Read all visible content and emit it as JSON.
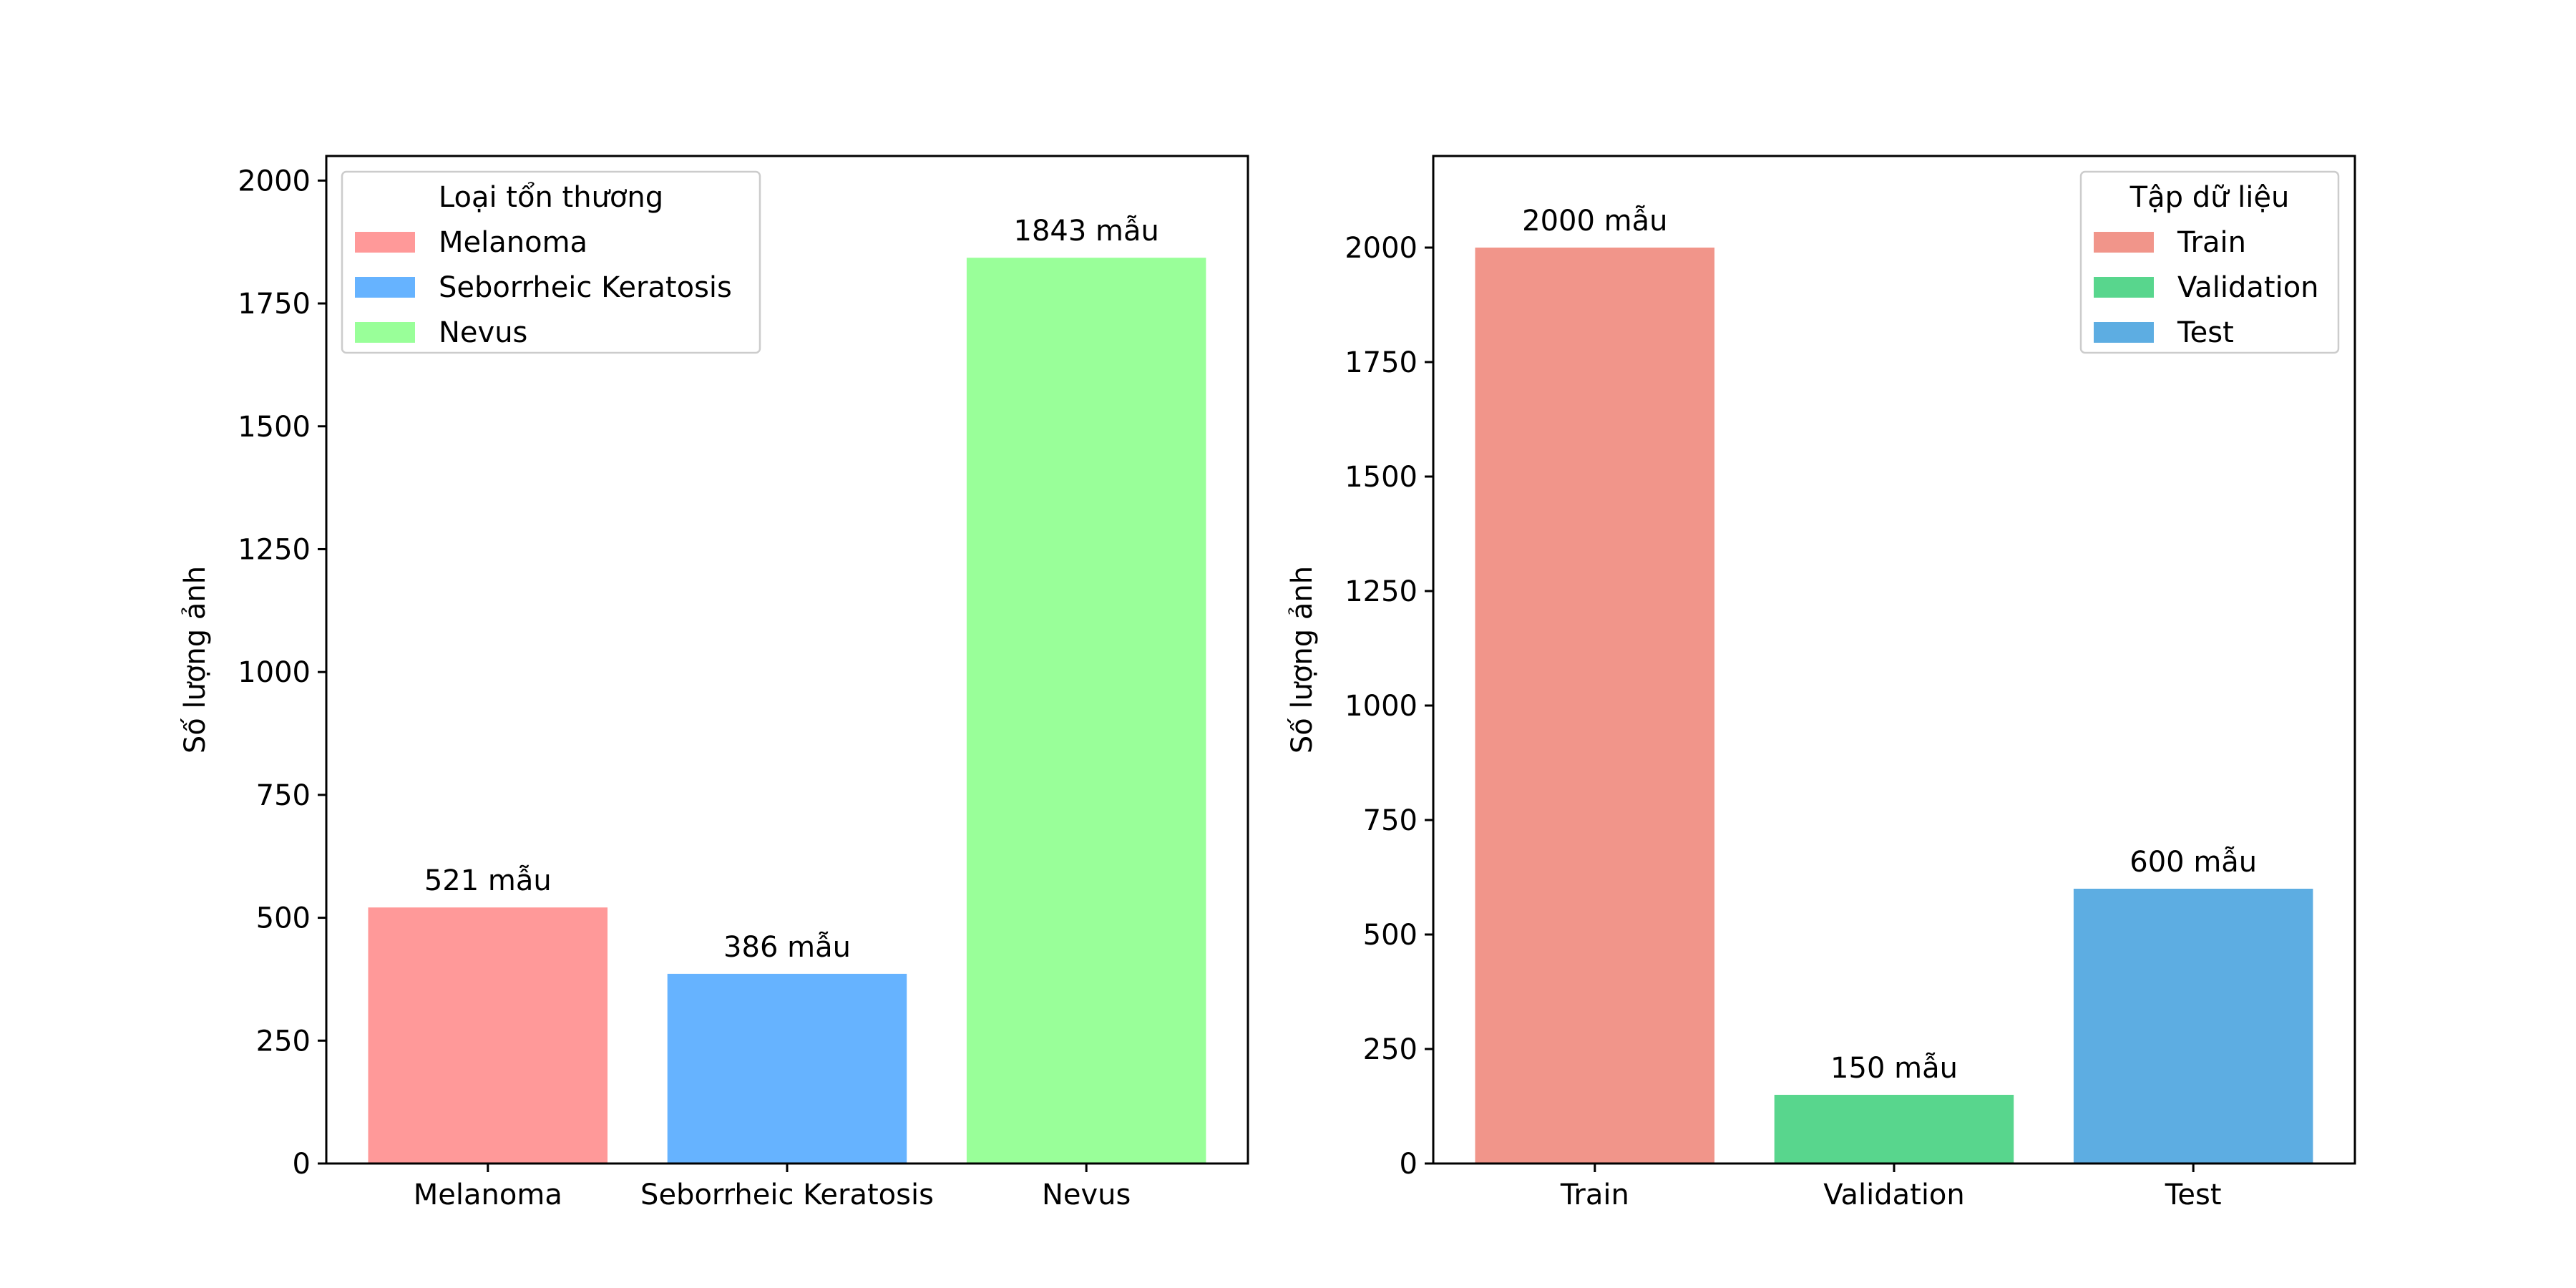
{
  "chart_data": [
    {
      "type": "bar",
      "categories": [
        "Melanoma",
        "Seborrheic Keratosis",
        "Nevus"
      ],
      "values": [
        521,
        386,
        1843
      ],
      "bar_labels": [
        "521 mẫu",
        "386 mẫu",
        "1843 mẫu"
      ],
      "colors": [
        "#ff9999",
        "#66b3ff",
        "#99ff99"
      ],
      "title": "",
      "xlabel": "",
      "ylabel": "Số lượng ảnh",
      "ylim": [
        0,
        2050
      ],
      "yticks": [
        0,
        250,
        500,
        750,
        1000,
        1250,
        1500,
        1750,
        2000
      ],
      "grid": false,
      "legend": {
        "title": "Loại tổn thương",
        "placement": "top-left",
        "entries": [
          "Melanoma",
          "Seborrheic Keratosis",
          "Nevus"
        ]
      }
    },
    {
      "type": "bar",
      "categories": [
        "Train",
        "Validation",
        "Test"
      ],
      "values": [
        2000,
        150,
        600
      ],
      "bar_labels": [
        "2000 mẫu",
        "150 mẫu",
        "600 mẫu"
      ],
      "colors": [
        "#f1958a",
        "#58d68d",
        "#5dade2"
      ],
      "title": "",
      "xlabel": "",
      "ylabel": "Số lượng ảnh",
      "ylim": [
        0,
        2200
      ],
      "yticks": [
        0,
        250,
        500,
        750,
        1000,
        1250,
        1500,
        1750,
        2000
      ],
      "grid": false,
      "legend": {
        "title": "Tập dữ liệu",
        "placement": "top-right",
        "entries": [
          "Train",
          "Validation",
          "Test"
        ]
      }
    }
  ]
}
